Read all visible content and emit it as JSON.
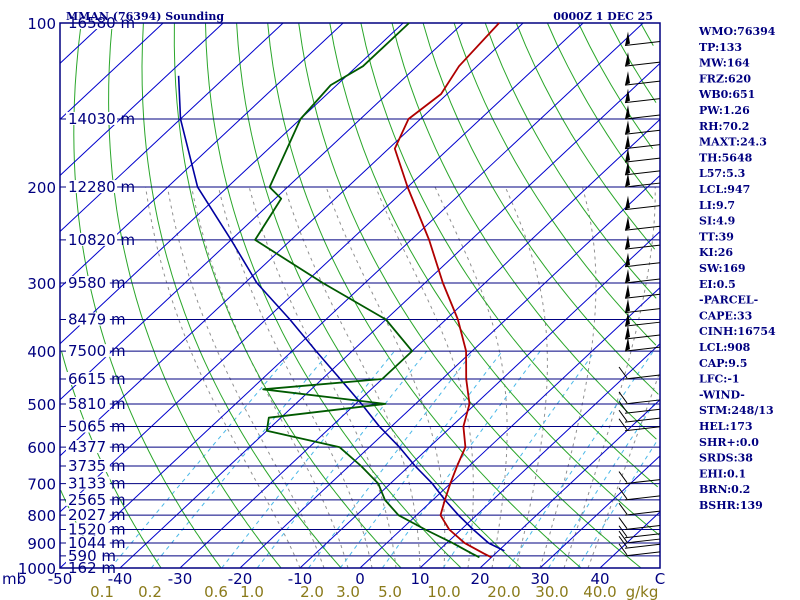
{
  "header": {
    "station": "MMAN (76394) Sounding",
    "time": "0000Z  1 DEC 25"
  },
  "indices": [
    "WMO:76394",
    "TP:133",
    "MW:164",
    "FRZ:620",
    "WB0:651",
    "PW:1.26",
    "RH:70.2",
    "MAXT:24.3",
    "TH:5648",
    "L57:5.3",
    "LCL:947",
    "LI:9.7",
    "SI:4.9",
    "TT:39",
    "KI:26",
    "SW:169",
    "EI:0.5",
    "-PARCEL-",
    "CAPE:33",
    "CINH:16754",
    "LCL:908",
    "CAP:9.5",
    "LFC:-1",
    "-WIND-",
    "STM:248/13",
    "HEL:173",
    "SHR+:0.0",
    "SRDS:38",
    "EHI:0.1",
    "BRN:0.2",
    "BSHR:139"
  ],
  "chart_data": {
    "type": "skew-t log-p sounding",
    "xlabel": "",
    "ylabel": "",
    "pressure_unit": "mb",
    "mixing_ratio_unit": "g/kg",
    "xlim": [
      -50,
      50
    ],
    "ylim": [
      1000,
      100
    ],
    "pressure_levels": [
      {
        "p": 100,
        "height": "16580 m"
      },
      {
        "p": 150,
        "height": "14030 m"
      },
      {
        "p": 200,
        "height": "12280 m"
      },
      {
        "p": 250,
        "height": "10820 m"
      },
      {
        "p": 300,
        "height": "9580 m"
      },
      {
        "p": 350,
        "height": "8479 m"
      },
      {
        "p": 400,
        "height": "7500 m"
      },
      {
        "p": 450,
        "height": "6615 m"
      },
      {
        "p": 500,
        "height": "5810 m"
      },
      {
        "p": 550,
        "height": "5065 m"
      },
      {
        "p": 600,
        "height": "4377 m"
      },
      {
        "p": 650,
        "height": "3735 m"
      },
      {
        "p": 700,
        "height": "3133 m"
      },
      {
        "p": 750,
        "height": "2565 m"
      },
      {
        "p": 800,
        "height": "2027 m"
      },
      {
        "p": 850,
        "height": "1520 m"
      },
      {
        "p": 900,
        "height": "1044 m"
      },
      {
        "p": 950,
        "height": "590 m"
      },
      {
        "p": 1000,
        "height": "162 m"
      }
    ],
    "pressure_tick_labels": [
      100,
      200,
      300,
      400,
      500,
      600,
      700,
      800,
      900,
      1000
    ],
    "temperature_ticks": [
      "-50",
      "-40",
      "-30",
      "-20",
      "-10",
      "0",
      "10",
      "20",
      "30",
      "40",
      "C"
    ],
    "mixing_ratio_labels": [
      {
        "label": "0.1",
        "x": -43
      },
      {
        "label": "0.2",
        "x": -35
      },
      {
        "label": "0.6",
        "x": -24
      },
      {
        "label": "1.0",
        "x": -18
      },
      {
        "label": "2.0",
        "x": -8
      },
      {
        "label": "3.0",
        "x": -2
      },
      {
        "label": "5.0",
        "x": 5
      },
      {
        "label": "10.0",
        "x": 14
      },
      {
        "label": "20.0",
        "x": 24
      },
      {
        "label": "30.0",
        "x": 32
      },
      {
        "label": "40.0",
        "x": 40
      },
      {
        "label": "g/kg",
        "x": 47
      }
    ],
    "temperature_profile": [
      [
        956,
        20
      ],
      [
        940,
        18
      ],
      [
        900,
        13
      ],
      [
        850,
        8
      ],
      [
        800,
        4
      ],
      [
        750,
        2
      ],
      [
        700,
        0
      ],
      [
        650,
        -2
      ],
      [
        600,
        -4
      ],
      [
        550,
        -8
      ],
      [
        500,
        -11
      ],
      [
        450,
        -16
      ],
      [
        400,
        -21
      ],
      [
        350,
        -28
      ],
      [
        300,
        -37
      ],
      [
        250,
        -47
      ],
      [
        200,
        -60
      ],
      [
        170,
        -69
      ],
      [
        150,
        -72
      ],
      [
        135,
        -71
      ],
      [
        120,
        -73
      ],
      [
        100,
        -74
      ]
    ],
    "dewpoint_profile": [
      [
        956,
        18
      ],
      [
        940,
        16
      ],
      [
        900,
        11
      ],
      [
        850,
        4
      ],
      [
        800,
        -3
      ],
      [
        750,
        -8
      ],
      [
        700,
        -12
      ],
      [
        650,
        -18
      ],
      [
        600,
        -25
      ],
      [
        560,
        -40
      ],
      [
        530,
        -42
      ],
      [
        500,
        -25
      ],
      [
        470,
        -48
      ],
      [
        450,
        -30
      ],
      [
        400,
        -30
      ],
      [
        350,
        -40
      ],
      [
        300,
        -57
      ],
      [
        250,
        -76
      ],
      [
        210,
        -79
      ],
      [
        200,
        -83
      ],
      [
        150,
        -90
      ],
      [
        130,
        -91
      ],
      [
        120,
        -89
      ],
      [
        100,
        -89
      ]
    ],
    "parcel_profile": [
      [
        930,
        21
      ],
      [
        900,
        17
      ],
      [
        850,
        12
      ],
      [
        800,
        7
      ],
      [
        750,
        2
      ],
      [
        700,
        -3
      ],
      [
        650,
        -9
      ],
      [
        600,
        -15
      ],
      [
        550,
        -22
      ],
      [
        500,
        -29
      ],
      [
        450,
        -37
      ],
      [
        400,
        -46
      ],
      [
        350,
        -56
      ],
      [
        300,
        -68
      ],
      [
        250,
        -80
      ],
      [
        200,
        -95
      ],
      [
        150,
        -110
      ],
      [
        125,
        -118
      ]
    ],
    "grid": true,
    "colors": {
      "axes": "#000080",
      "isobar": "#000080",
      "isotherm": "#0000cc",
      "dry_adiabat": "#2aa62a",
      "moist_adiabat": "#909090",
      "mixing_ratio": "#4bb8e8",
      "temperature": "#b00000",
      "dewpoint": "#005a00",
      "parcel": "#0000a0",
      "wind_barbs": "#000000",
      "mixing_ratio_text": "#8a7a1a"
    }
  }
}
